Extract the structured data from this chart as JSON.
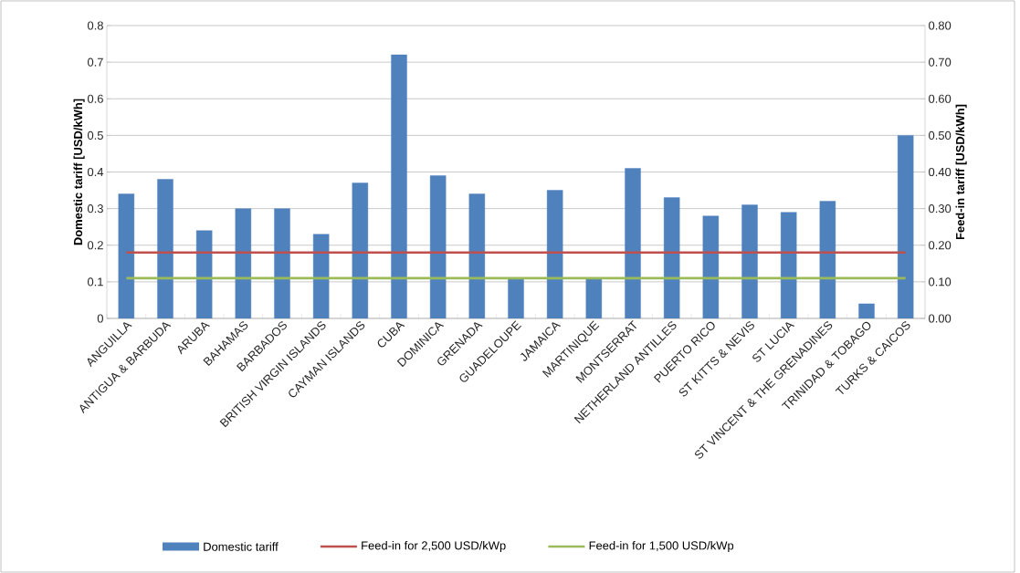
{
  "chart_data": {
    "type": "bar",
    "categories": [
      "ANGUILLA",
      "ANTIGUA & BARBUDA",
      "ARUBA",
      "BAHAMAS",
      "BARBADOS",
      "BRITISH VIRGIN ISLANDS",
      "CAYMAN ISLANDS",
      "CUBA",
      "DOMINICA",
      "GRENADA",
      "GUADELOUPE",
      "JAMAICA",
      "MARTINIQUE",
      "MONTSERRAT",
      "NETHERLAND ANTILLES",
      "PUERTO RICO",
      "ST KITTS & NEVIS",
      "ST LUCIA",
      "ST VINCENT & THE GRENADINES",
      "TRINIDAD & TOBAGO",
      "TURKS & CAICOS"
    ],
    "series": [
      {
        "name": "Domestic tariff",
        "color": "#4f81bd",
        "values": [
          0.34,
          0.38,
          0.24,
          0.3,
          0.3,
          0.23,
          0.37,
          0.72,
          0.39,
          0.34,
          0.11,
          0.35,
          0.11,
          0.41,
          0.33,
          0.28,
          0.31,
          0.29,
          0.32,
          0.04,
          0.5
        ]
      },
      {
        "name": "Feed-in for 2,500 USD/kWp",
        "type": "line",
        "axis": "y2",
        "color": "#c0504d",
        "values": [
          0.18,
          0.18,
          0.18,
          0.18,
          0.18,
          0.18,
          0.18,
          0.18,
          0.18,
          0.18,
          0.18,
          0.18,
          0.18,
          0.18,
          0.18,
          0.18,
          0.18,
          0.18,
          0.18,
          0.18,
          0.18
        ]
      },
      {
        "name": "Feed-in for 1,500 USD/kWp",
        "type": "line",
        "axis": "y2",
        "color": "#9bbb59",
        "values": [
          0.11,
          0.11,
          0.11,
          0.11,
          0.11,
          0.11,
          0.11,
          0.11,
          0.11,
          0.11,
          0.11,
          0.11,
          0.11,
          0.11,
          0.11,
          0.11,
          0.11,
          0.11,
          0.11,
          0.11,
          0.11
        ]
      }
    ],
    "ylabel": "Domestic tariff [USD/kWh]",
    "y2label": "Feed-in tariff [USD/kWh]",
    "ylim": [
      0,
      0.8
    ],
    "yticks": [
      0,
      0.1,
      0.2,
      0.3,
      0.4,
      0.5,
      0.6,
      0.7,
      0.8
    ],
    "y2lim": [
      0,
      0.8
    ],
    "y2ticks": [
      {
        "value": 0,
        "label": "0.00"
      },
      {
        "value": 0.1,
        "label": "0.10"
      },
      {
        "value": 0.2,
        "label": "0.20"
      },
      {
        "value": 0.3,
        "label": "0.30"
      },
      {
        "value": 0.4,
        "label": "0.40"
      },
      {
        "value": 0.5,
        "label": "0.50"
      },
      {
        "value": 0.6,
        "label": "0.60"
      },
      {
        "value": 0.7,
        "label": "0.70"
      },
      {
        "value": 0.8,
        "label": "0.80"
      }
    ],
    "grid": "y",
    "legend": "bottom"
  }
}
